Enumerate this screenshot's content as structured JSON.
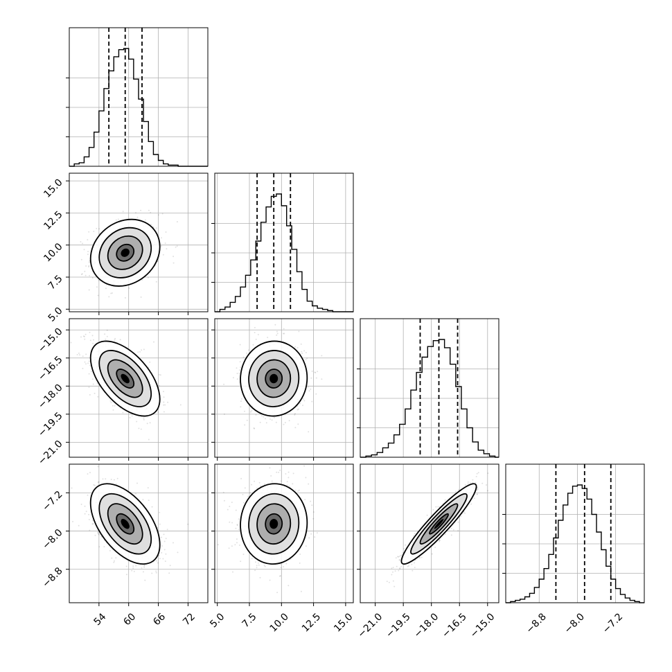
{
  "chart_data": {
    "type": "corner",
    "parameters": [
      {
        "index": 0,
        "range": [
          48,
          76
        ],
        "ticks": [
          "54",
          "60",
          "66",
          "72"
        ],
        "tick_values": [
          54,
          60,
          66,
          72
        ],
        "quantiles": [
          56.0,
          59.3,
          62.7
        ],
        "hist_edges": [
          48,
          49,
          50,
          51,
          52,
          53,
          54,
          55,
          56,
          57,
          58,
          59,
          60,
          61,
          62,
          63,
          64,
          65,
          66,
          67,
          68,
          69,
          70,
          71,
          72,
          73,
          74,
          75,
          76
        ],
        "hist_counts": [
          0.0,
          0.02,
          0.03,
          0.08,
          0.16,
          0.29,
          0.47,
          0.66,
          0.81,
          0.93,
          0.99,
          1.0,
          0.91,
          0.74,
          0.57,
          0.38,
          0.21,
          0.1,
          0.05,
          0.02,
          0.01,
          0.01,
          0.0,
          0.0,
          0.0,
          0.0,
          0.0,
          0.0
        ],
        "mean": 59.3,
        "sd": 3.5
      },
      {
        "index": 1,
        "range": [
          4.8,
          15.6
        ],
        "ticks": [
          "5.0",
          "7.5",
          "10.0",
          "12.5",
          "15.0"
        ],
        "tick_values": [
          5.0,
          7.5,
          10.0,
          12.5,
          15.0
        ],
        "quantiles": [
          8.1,
          9.4,
          10.7
        ],
        "hist_edges": [
          4.8,
          5.2,
          5.6,
          6.0,
          6.4,
          6.8,
          7.2,
          7.6,
          8.0,
          8.4,
          8.8,
          9.2,
          9.6,
          10.0,
          10.4,
          10.8,
          11.2,
          11.6,
          12.0,
          12.4,
          12.8,
          13.2,
          13.6,
          14.0,
          14.4,
          14.8,
          15.2,
          15.6
        ],
        "hist_counts": [
          0.0,
          0.02,
          0.04,
          0.08,
          0.13,
          0.21,
          0.31,
          0.44,
          0.6,
          0.76,
          0.89,
          0.98,
          1.0,
          0.9,
          0.73,
          0.53,
          0.34,
          0.19,
          0.09,
          0.05,
          0.03,
          0.02,
          0.01,
          0.0,
          0.0,
          0.0,
          0.0
        ],
        "mean": 9.4,
        "sd": 1.3
      },
      {
        "index": 2,
        "range": [
          -21.8,
          -14.4
        ],
        "ticks": [
          "−21.0",
          "−19.5",
          "−18.0",
          "−16.5",
          "−15.0"
        ],
        "tick_values": [
          -21.0,
          -19.5,
          -18.0,
          -16.5,
          -15.0
        ],
        "quantiles": [
          -18.6,
          -17.6,
          -16.6
        ],
        "hist_edges": [
          -21.8,
          -21.5,
          -21.2,
          -20.9,
          -20.6,
          -20.3,
          -20.0,
          -19.7,
          -19.4,
          -19.1,
          -18.8,
          -18.5,
          -18.2,
          -17.9,
          -17.6,
          -17.3,
          -17.0,
          -16.7,
          -16.4,
          -16.1,
          -15.8,
          -15.5,
          -15.2,
          -14.9,
          -14.6,
          -14.4
        ],
        "hist_counts": [
          0.0,
          0.01,
          0.02,
          0.04,
          0.08,
          0.12,
          0.19,
          0.28,
          0.41,
          0.57,
          0.72,
          0.85,
          0.94,
          0.99,
          1.0,
          0.93,
          0.79,
          0.6,
          0.41,
          0.25,
          0.13,
          0.06,
          0.03,
          0.01,
          0.0
        ],
        "mean": -17.6,
        "sd": 1.0
      },
      {
        "index": 3,
        "range": [
          -9.5,
          -6.6
        ],
        "ticks": [
          "−8.8",
          "−8.0",
          "−7.2"
        ],
        "tick_values": [
          -8.8,
          -8.0,
          -7.2
        ],
        "quantiles": [
          -8.45,
          -7.85,
          -7.3
        ],
        "hist_edges": [
          -9.5,
          -9.4,
          -9.3,
          -9.2,
          -9.1,
          -9.0,
          -8.9,
          -8.8,
          -8.7,
          -8.6,
          -8.5,
          -8.4,
          -8.3,
          -8.2,
          -8.1,
          -8.0,
          -7.9,
          -7.8,
          -7.7,
          -7.6,
          -7.5,
          -7.4,
          -7.3,
          -7.2,
          -7.1,
          -7.0,
          -6.9,
          -6.8,
          -6.7,
          -6.6
        ],
        "hist_counts": [
          0.0,
          0.01,
          0.02,
          0.03,
          0.05,
          0.08,
          0.13,
          0.2,
          0.29,
          0.41,
          0.55,
          0.7,
          0.83,
          0.93,
          0.99,
          1.0,
          0.97,
          0.88,
          0.75,
          0.6,
          0.45,
          0.31,
          0.2,
          0.12,
          0.07,
          0.04,
          0.02,
          0.01,
          0.0
        ],
        "mean": -7.85,
        "sd": 0.42
      }
    ],
    "correlations": [
      {
        "i": 1,
        "j": 0,
        "rho": 0.18
      },
      {
        "i": 2,
        "j": 0,
        "rho": -0.55
      },
      {
        "i": 2,
        "j": 1,
        "rho": 0.02
      },
      {
        "i": 3,
        "j": 0,
        "rho": -0.52
      },
      {
        "i": 3,
        "j": 1,
        "rho": 0.03
      },
      {
        "i": 3,
        "j": 2,
        "rho": 0.93
      }
    ],
    "hist_ticks_fraction": [
      0.25,
      0.5,
      0.75
    ],
    "contour_levels_sigma": [
      0.5,
      1.0,
      1.5,
      2.0
    ],
    "grid": true,
    "colors": {
      "line": "#000000",
      "grid": "#b0b0b0",
      "scatter": "#000000",
      "fill_dark": "#000000",
      "fill_light": "#ffffff"
    }
  }
}
